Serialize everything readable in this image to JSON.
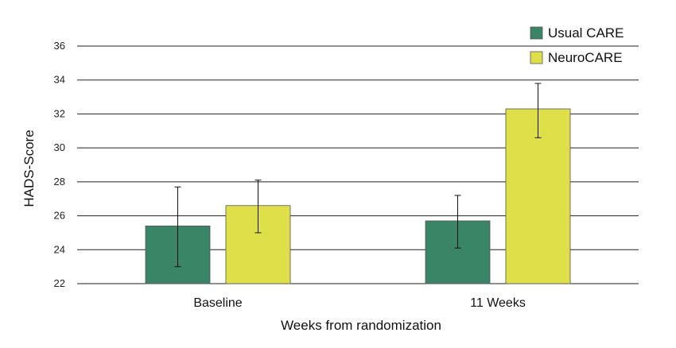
{
  "chart_data": {
    "type": "bar",
    "title": "",
    "xlabel": "Weeks from randomization",
    "ylabel": "HADS-Score",
    "ylim": [
      22,
      36
    ],
    "yticks": [
      22,
      24,
      26,
      28,
      30,
      32,
      34,
      36
    ],
    "ytick_labels": [
      "22",
      "24",
      "26",
      "28",
      "30",
      "32",
      "34",
      "36"
    ],
    "categories": [
      "Baseline",
      "11 Weeks"
    ],
    "grid": "horizontal",
    "legend_position": "top-right",
    "series": [
      {
        "name": "Usual CARE",
        "color": "#3a8566",
        "values": [
          25.4,
          25.7
        ],
        "error_low": [
          23.0,
          24.1
        ],
        "error_high": [
          27.7,
          27.2
        ]
      },
      {
        "name": "NeuroCARE",
        "color": "#dfdf4a",
        "values": [
          26.6,
          32.3
        ],
        "error_low": [
          25.0,
          30.6
        ],
        "error_high": [
          28.1,
          33.8
        ]
      }
    ]
  }
}
